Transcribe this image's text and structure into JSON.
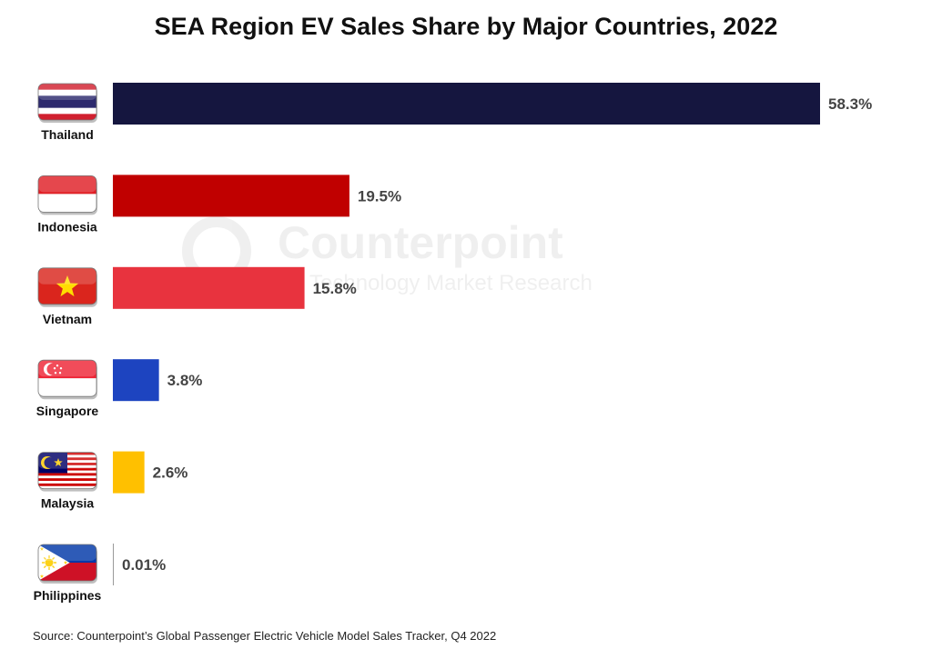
{
  "chart_data": {
    "type": "bar",
    "orientation": "horizontal",
    "title": "SEA Region EV Sales Share by Major Countries, 2022",
    "categories": [
      "Thailand",
      "Indonesia",
      "Vietnam",
      "Singapore",
      "Malaysia",
      "Philippines"
    ],
    "values": [
      58.3,
      19.5,
      15.8,
      3.8,
      2.6,
      0.01
    ],
    "value_labels": [
      "58.3%",
      "19.5%",
      "15.8%",
      "3.8%",
      "2.6%",
      "0.01%"
    ],
    "colors": [
      "#15163f",
      "#c00000",
      "#e8333e",
      "#1d44c0",
      "#ffc000",
      "#9a9a9a"
    ],
    "flags": [
      "thailand-flag",
      "indonesia-flag",
      "vietnam-flag",
      "singapore-flag",
      "malaysia-flag",
      "philippines-flag"
    ],
    "xlim": [
      0,
      58.3
    ],
    "grid": false,
    "legend": "none"
  },
  "watermark": {
    "brand": "Counterpoint",
    "tagline": "Technology Market Research"
  },
  "source": "Source: Counterpoint’s Global Passenger Electric Vehicle Model Sales Tracker, Q4 2022"
}
